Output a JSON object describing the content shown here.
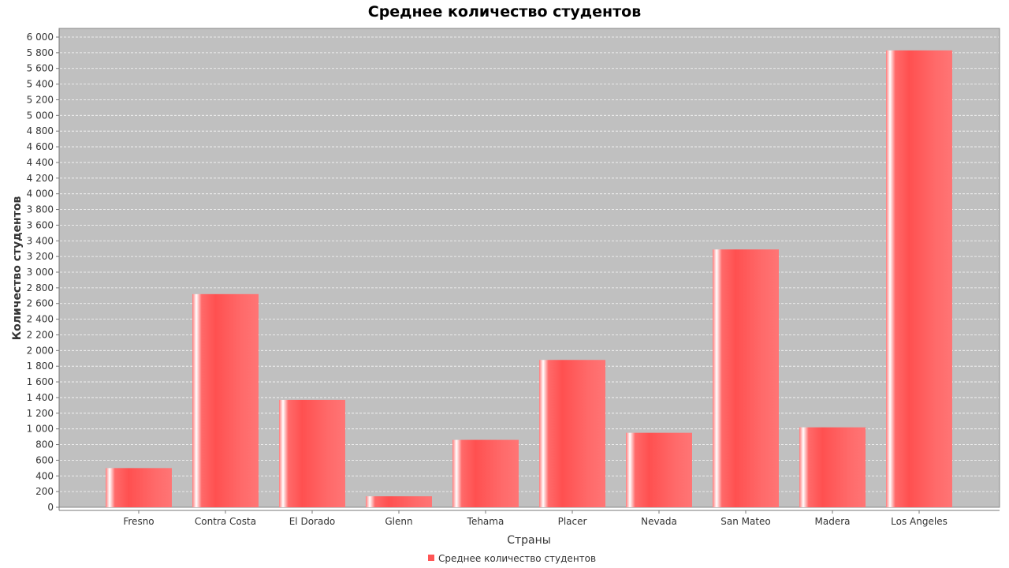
{
  "chart_data": {
    "type": "bar",
    "title": "Среднее количество студентов",
    "xlabel": "Страны",
    "ylabel": "Количество студентов",
    "categories": [
      "Fresno",
      "Contra Costa",
      "El Dorado",
      "Glenn",
      "Tehama",
      "Placer",
      "Nevada",
      "San Mateo",
      "Madera",
      "Los Angeles"
    ],
    "series": [
      {
        "name": "Среднее количество студентов",
        "values": [
          500,
          2720,
          1370,
          140,
          860,
          1880,
          950,
          3290,
          1020,
          5830
        ]
      }
    ],
    "ylim": [
      0,
      6000
    ],
    "ytick_step": 200,
    "yticks_labels": [
      "0",
      "200",
      "400",
      "600",
      "800",
      "1 000",
      "1 200",
      "1 400",
      "1 600",
      "1 800",
      "2 000",
      "2 200",
      "2 400",
      "2 600",
      "2 800",
      "3 000",
      "3 200",
      "3 400",
      "3 600",
      "3 800",
      "4 000",
      "4 200",
      "4 400",
      "4 600",
      "4 800",
      "5 000",
      "5 200",
      "5 400",
      "5 600",
      "5 800",
      "6 000"
    ],
    "grid": true,
    "legend_position": "bottom-center",
    "colors": {
      "bar": "#ff5555",
      "plot_background": "#c0c0c0",
      "grid": "#ffffff"
    }
  }
}
